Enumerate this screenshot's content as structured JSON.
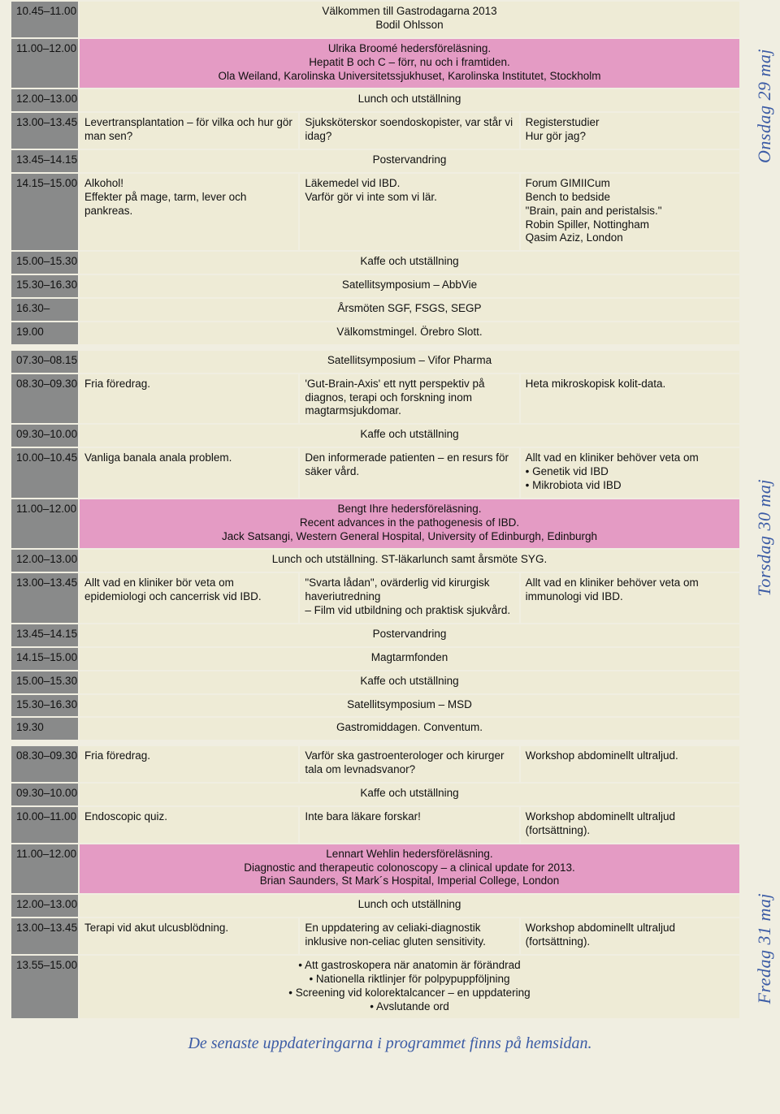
{
  "colors": {
    "page_bg": "#f0eee1",
    "row_bg": "#eeebd6",
    "time_bg": "#898a8a",
    "time_fg": "#ffffff",
    "pink_bg": "#e49bc4",
    "accent_blue": "#3b5ba5"
  },
  "side_labels": {
    "wed": "Onsdag 29 maj",
    "thu": "Torsdag 30 maj",
    "fri": "Fredag 31 maj"
  },
  "footer": "De senaste uppdateringarna i programmet finns på hemsidan.",
  "days": [
    {
      "rows": [
        {
          "time": "10.45–11.00",
          "pink": false,
          "span": true,
          "text": "Välkommen till Gastrodagarna 2013\nBodil Ohlsson"
        },
        {
          "time": "11.00–12.00",
          "pink": true,
          "span": true,
          "text": "Ulrika Broomé hedersföreläsning.\nHepatit B och C – förr, nu och i framtiden.\nOla Weiland, Karolinska Universitetssjukhuset, Karolinska Institutet, Stockholm"
        },
        {
          "time": "12.00–13.00",
          "pink": false,
          "span": true,
          "text": "Lunch och utställning"
        },
        {
          "time": "13.00–13.45",
          "pink": false,
          "cols": [
            "Levertransplantation – för vilka och hur gör man sen?",
            "Sjuksköterskor soendoskopister, var står vi idag?",
            "Registerstudier\nHur gör jag?"
          ]
        },
        {
          "time": "13.45–14.15",
          "pink": false,
          "span": true,
          "text": "Postervandring"
        },
        {
          "time": "14.15–15.00",
          "pink": false,
          "cols": [
            "Alkohol!\nEffekter på mage, tarm, lever och pankreas.",
            "Läkemedel vid IBD.\nVarför gör vi inte som vi lär.",
            "Forum GIMIICum\nBench to bedside\n\"Brain, pain and peristalsis.\"\nRobin Spiller, Nottingham\nQasim Aziz, London"
          ]
        },
        {
          "time": "15.00–15.30",
          "pink": false,
          "span": true,
          "text": "Kaffe och utställning"
        },
        {
          "time": "15.30–16.30",
          "pink": false,
          "span": true,
          "text": "Satellitsymposium – AbbVie"
        },
        {
          "time": "16.30–",
          "pink": false,
          "span": true,
          "text": "Årsmöten SGF, FSGS, SEGP"
        },
        {
          "time": "19.00",
          "pink": false,
          "span": true,
          "text": "Välkomstmingel. Örebro Slott."
        }
      ]
    },
    {
      "rows": [
        {
          "time": "07.30–08.15",
          "pink": false,
          "span": true,
          "text": "Satellitsymposium – Vifor Pharma"
        },
        {
          "time": "08.30–09.30",
          "pink": false,
          "cols": [
            "Fria föredrag.",
            "'Gut-Brain-Axis' ett nytt perspektiv på diagnos, terapi och forskning inom magtarmsjukdomar.",
            "Heta mikroskopisk kolit-data."
          ]
        },
        {
          "time": "09.30–10.00",
          "pink": false,
          "span": true,
          "text": "Kaffe och utställning"
        },
        {
          "time": "10.00–10.45",
          "pink": false,
          "cols": [
            "Vanliga banala anala problem.",
            "Den informerade patienten – en resurs för säker vård.",
            "Allt vad en kliniker behöver veta om\n• Genetik vid IBD\n• Mikrobiota vid IBD"
          ]
        },
        {
          "time": "11.00–12.00",
          "pink": true,
          "span": true,
          "text": "Bengt Ihre hedersföreläsning.\nRecent advances in the pathogenesis of IBD.\nJack Satsangi, Western General Hospital, University of Edinburgh, Edinburgh"
        },
        {
          "time": "12.00–13.00",
          "pink": false,
          "span": true,
          "text": "Lunch och utställning. ST-läkarlunch samt årsmöte SYG."
        },
        {
          "time": "13.00–13.45",
          "pink": false,
          "cols": [
            "Allt vad en kliniker bör veta om epidemiologi och cancerrisk vid IBD.",
            "\"Svarta lådan\", ovärderlig vid kirurgisk haveriutredning\n– Film vid utbildning och praktisk sjukvård.",
            "Allt vad en kliniker behöver veta om immunologi vid IBD."
          ]
        },
        {
          "time": "13.45–14.15",
          "pink": false,
          "span": true,
          "text": "Postervandring"
        },
        {
          "time": "14.15–15.00",
          "pink": false,
          "span": true,
          "text": "Magtarmfonden"
        },
        {
          "time": "15.00–15.30",
          "pink": false,
          "span": true,
          "text": "Kaffe och utställning"
        },
        {
          "time": "15.30–16.30",
          "pink": false,
          "span": true,
          "text": "Satellitsymposium – MSD"
        },
        {
          "time": "19.30",
          "pink": false,
          "span": true,
          "text": "Gastromiddagen. Conventum."
        }
      ]
    },
    {
      "rows": [
        {
          "time": "08.30–09.30",
          "pink": false,
          "cols": [
            "Fria föredrag.",
            "Varför ska gastroenterologer och kirurger tala om levnadsvanor?",
            "Workshop abdominellt ultraljud."
          ]
        },
        {
          "time": "09.30–10.00",
          "pink": false,
          "span": true,
          "text": "Kaffe och utställning"
        },
        {
          "time": "10.00–11.00",
          "pink": false,
          "cols": [
            "Endoscopic quiz.",
            "Inte bara läkare forskar!",
            "Workshop abdominellt ultraljud (fortsättning)."
          ]
        },
        {
          "time": "11.00–12.00",
          "pink": true,
          "span": true,
          "text": "Lennart Wehlin hedersföreläsning.\nDiagnostic and therapeutic colonoscopy – a clinical update for 2013.\nBrian Saunders, St Mark´s Hospital, Imperial College, London"
        },
        {
          "time": "12.00–13.00",
          "pink": false,
          "span": true,
          "text": "Lunch och utställning"
        },
        {
          "time": "13.00–13.45",
          "pink": false,
          "cols": [
            "Terapi vid akut ulcusblödning.",
            "En uppdatering av celiaki-diagnostik inklusive non-celiac gluten sensitivity.",
            "Workshop abdominellt ultraljud (fortsättning)."
          ]
        },
        {
          "time": "13.55–15.00",
          "pink": false,
          "span": true,
          "center": true,
          "text": "• Att gastroskopera när anatomin är förändrad\n• Nationella riktlinjer för polpypuppföljning\n• Screening vid kolorektalcancer – en uppdatering\n• Avslutande ord"
        }
      ]
    }
  ]
}
